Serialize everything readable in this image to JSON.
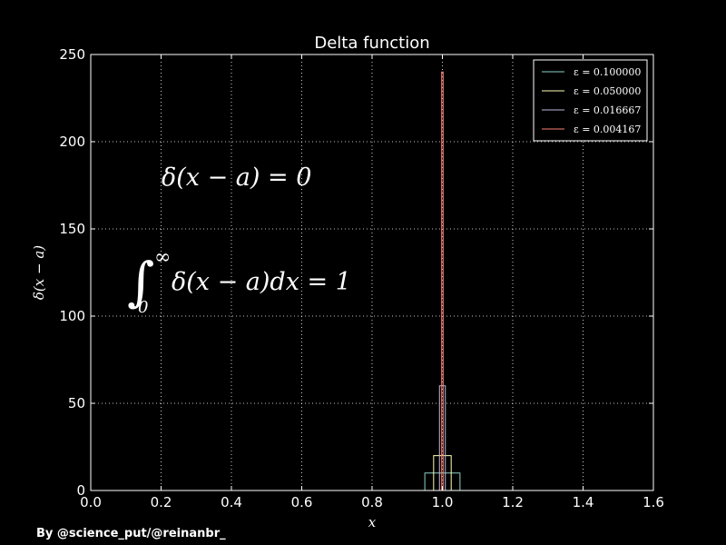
{
  "chart_data": {
    "type": "line",
    "title": "Delta function",
    "xlabel": "x",
    "ylabel": "δ(x − a)",
    "xlim": [
      0.0,
      1.6
    ],
    "ylim": [
      0,
      250
    ],
    "xticks": [
      "0.0",
      "0.2",
      "0.4",
      "0.6",
      "0.8",
      "1.0",
      "1.2",
      "1.4",
      "1.6"
    ],
    "yticks": [
      "0",
      "50",
      "100",
      "150",
      "200",
      "250"
    ],
    "grid": true,
    "legend_position": "top-right",
    "a": 1.0,
    "x_range": [
      0.5,
      1.5
    ],
    "series": [
      {
        "name": "ε = 0.100000",
        "epsilon": 0.1,
        "height": 10,
        "color": "#8dd3c7"
      },
      {
        "name": "ε = 0.050000",
        "epsilon": 0.05,
        "height": 20,
        "color": "#ffffb3"
      },
      {
        "name": "ε = 0.016667",
        "epsilon": 0.016667,
        "height": 60,
        "color": "#bebada"
      },
      {
        "name": "ε = 0.004167",
        "epsilon": 0.004167,
        "height": 240,
        "color": "#fb8072"
      }
    ],
    "annotations": [
      "δ(x − a) = 0",
      "∫",
      "∞",
      "0",
      "δ(x − a)dx = 1"
    ]
  },
  "credit": "By @science_put/@reinanbr_"
}
